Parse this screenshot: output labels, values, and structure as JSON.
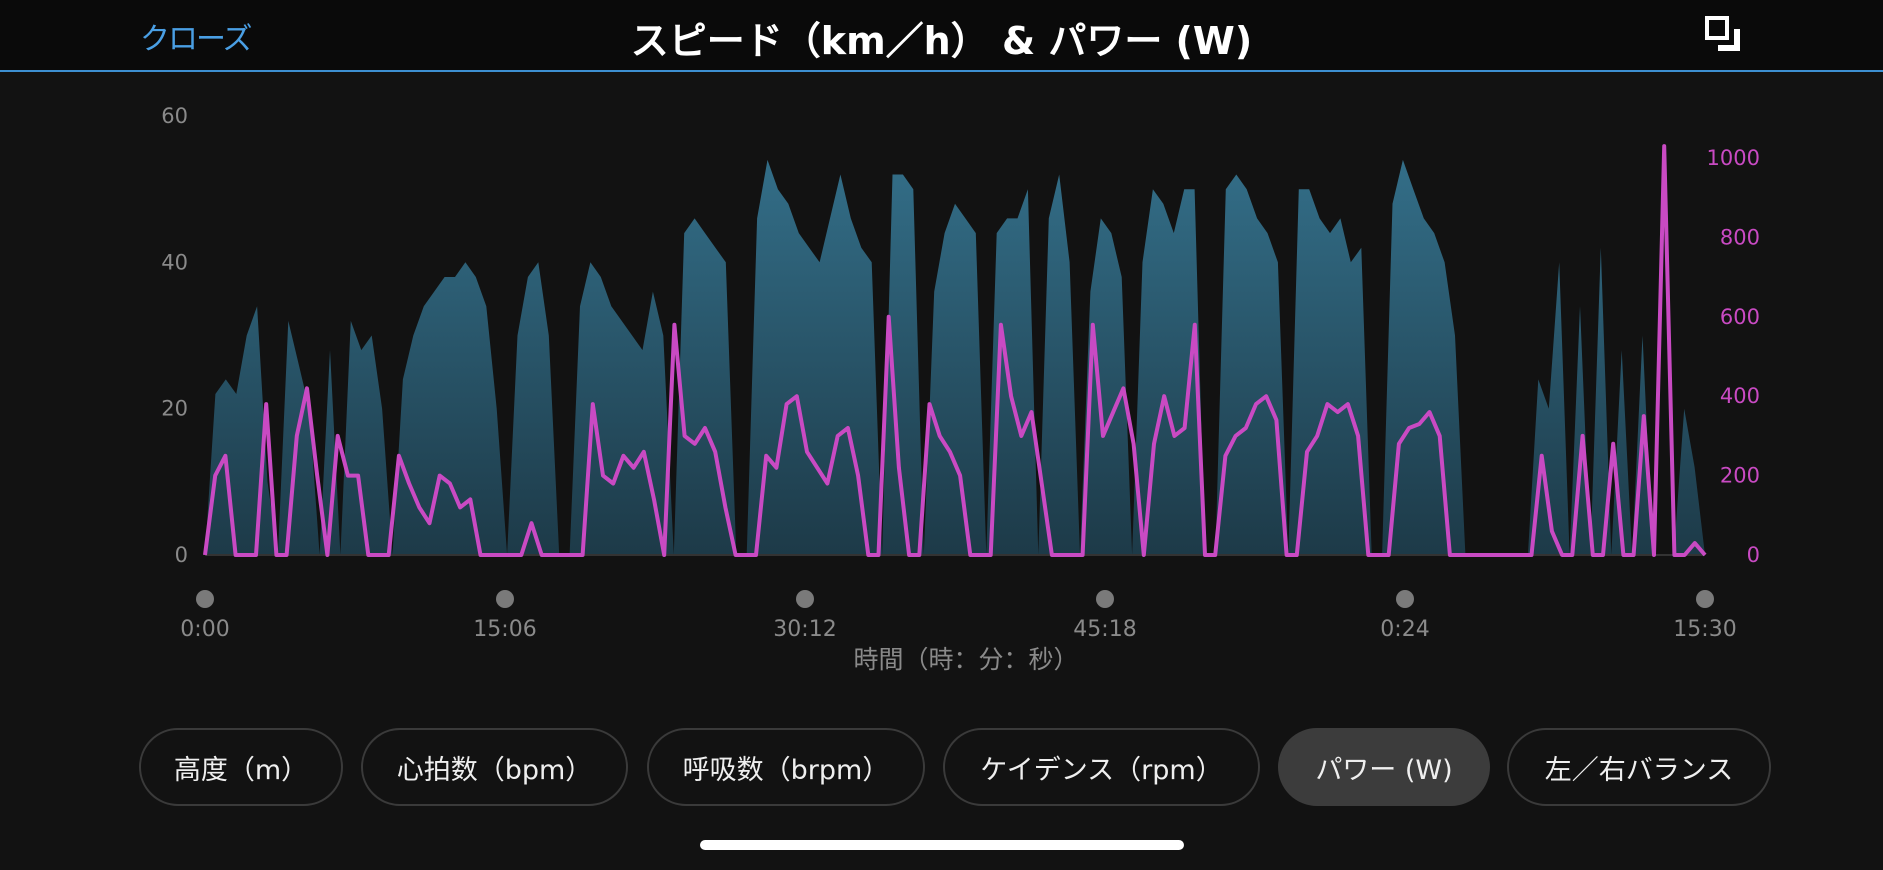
{
  "header": {
    "close_label": "クローズ",
    "title": "スピード（km／h） & パワー (W)",
    "fullscreen_icon": "fullscreen-icon"
  },
  "chart_data": {
    "type": "area+line",
    "xlabel": "時間（時：分：秒）",
    "x_ticks": [
      "0:00",
      "15:06",
      "30:12",
      "45:18",
      "0:24",
      "15:30"
    ],
    "y_left": {
      "ticks": [
        "0",
        "20",
        "40",
        "60"
      ],
      "range": [
        0,
        60
      ],
      "color": "#3a6f87"
    },
    "y_right": {
      "ticks": [
        "0",
        "200",
        "400",
        "600",
        "800",
        "1000"
      ],
      "range": [
        0,
        1000
      ],
      "color": "#c94ac3"
    },
    "series": [
      {
        "axis": "left",
        "style": "area",
        "values": [
          0,
          22,
          24,
          22,
          30,
          34,
          10,
          0,
          32,
          26,
          20,
          0,
          28,
          0,
          32,
          28,
          30,
          20,
          0,
          24,
          30,
          34,
          36,
          38,
          38,
          40,
          38,
          34,
          20,
          0,
          30,
          38,
          40,
          30,
          0,
          0,
          34,
          40,
          38,
          34,
          32,
          30,
          28,
          36,
          30,
          0,
          44,
          46,
          44,
          42,
          40,
          0,
          0,
          46,
          54,
          50,
          48,
          44,
          42,
          40,
          46,
          52,
          46,
          42,
          40,
          0,
          52,
          52,
          50,
          0,
          36,
          44,
          48,
          46,
          44,
          0,
          44,
          46,
          46,
          50,
          0,
          46,
          52,
          40,
          0,
          36,
          46,
          44,
          38,
          0,
          40,
          50,
          48,
          44,
          50,
          50,
          0,
          0,
          50,
          52,
          50,
          46,
          44,
          40,
          0,
          50,
          50,
          46,
          44,
          46,
          40,
          42,
          0,
          0,
          48,
          54,
          50,
          46,
          44,
          40,
          30,
          0,
          0,
          0,
          0,
          0,
          0,
          0,
          24,
          20,
          40,
          0,
          34,
          0,
          42,
          0,
          28,
          0,
          30,
          0,
          0,
          0,
          20,
          12,
          0
        ]
      },
      {
        "axis": "right",
        "style": "line",
        "values": [
          0,
          200,
          250,
          0,
          0,
          0,
          380,
          0,
          0,
          300,
          420,
          200,
          0,
          300,
          200,
          200,
          0,
          0,
          0,
          250,
          180,
          120,
          80,
          200,
          180,
          120,
          140,
          0,
          0,
          0,
          0,
          0,
          80,
          0,
          0,
          0,
          0,
          0,
          380,
          200,
          180,
          250,
          220,
          260,
          140,
          0,
          580,
          300,
          280,
          320,
          260,
          120,
          0,
          0,
          0,
          250,
          220,
          380,
          400,
          260,
          220,
          180,
          300,
          320,
          200,
          0,
          0,
          600,
          220,
          0,
          0,
          380,
          300,
          260,
          200,
          0,
          0,
          0,
          580,
          400,
          300,
          360,
          180,
          0,
          0,
          0,
          0,
          580,
          300,
          360,
          420,
          280,
          0,
          280,
          400,
          300,
          320,
          580,
          0,
          0,
          250,
          300,
          320,
          380,
          400,
          340,
          0,
          0,
          260,
          300,
          380,
          360,
          380,
          300,
          0,
          0,
          0,
          280,
          320,
          330,
          360,
          300,
          0,
          0,
          0,
          0,
          0,
          0,
          0,
          0,
          0,
          250,
          60,
          0,
          0,
          300,
          0,
          0,
          280,
          0,
          0,
          350,
          0,
          1030,
          0,
          0,
          30,
          0
        ]
      }
    ]
  },
  "tabs": [
    {
      "label": "高度（m）",
      "active": false
    },
    {
      "label": "心拍数（bpm）",
      "active": false
    },
    {
      "label": "呼吸数（brpm）",
      "active": false
    },
    {
      "label": "ケイデンス（rpm）",
      "active": false
    },
    {
      "label": "パワー (W)",
      "active": true
    },
    {
      "label": "左／右バランス",
      "active": false
    }
  ]
}
